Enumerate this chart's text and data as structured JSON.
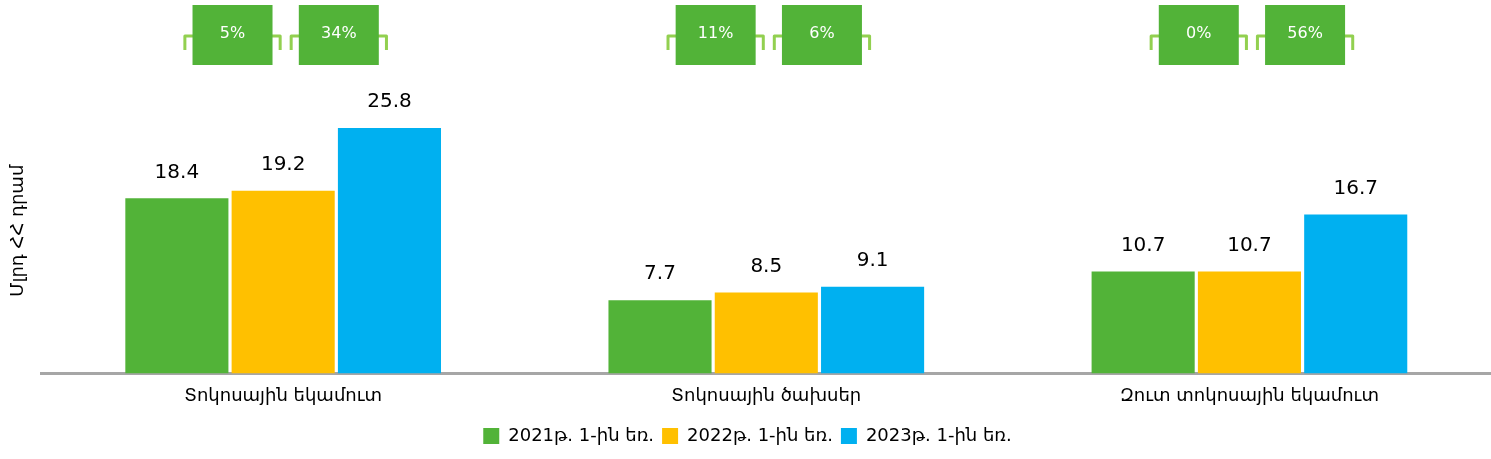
{
  "chart_data": {
    "type": "bar",
    "ylabel": "Մլրդ ՀՀ դրամ",
    "categories": [
      "Տոկոսային եկամուտ",
      "Տոկոսային ծախսեր",
      "Զուտ տոկոսային եկամուտ"
    ],
    "series": [
      {
        "name": "2021թ. 1-ին եռ.",
        "color": "#52b338",
        "values": [
          18.4,
          7.7,
          10.7
        ]
      },
      {
        "name": "2022թ. 1-ին եռ.",
        "color": "#ffc000",
        "values": [
          19.2,
          8.5,
          10.7
        ]
      },
      {
        "name": "2023թ. 1-ին եռ.",
        "color": "#00b0f0",
        "values": [
          25.8,
          9.1,
          16.7
        ]
      }
    ],
    "data_labels": true,
    "legend": "bottom",
    "grid": false,
    "annotations": [
      "5%",
      "34%",
      "11%",
      "6%",
      "0%",
      "56%"
    ]
  }
}
